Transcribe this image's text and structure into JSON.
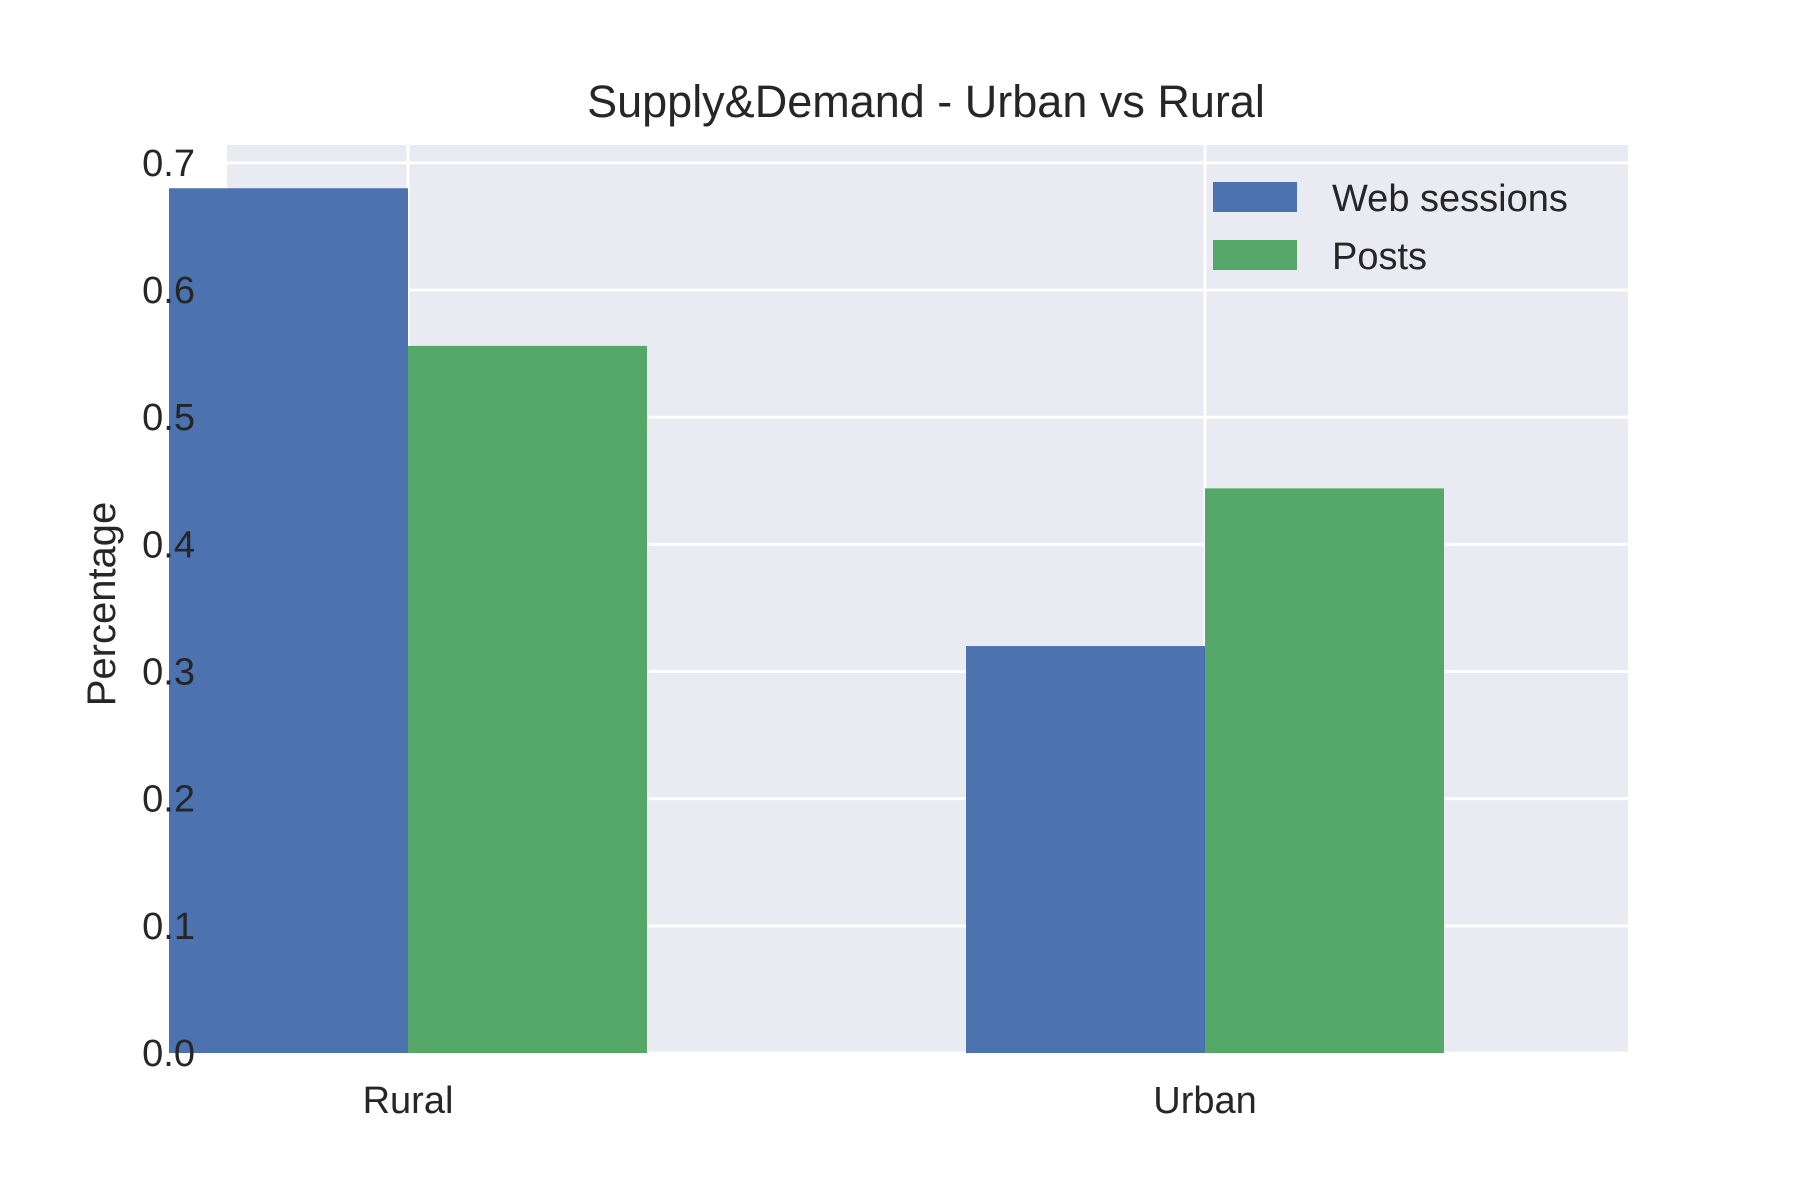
{
  "chart_data": {
    "type": "bar",
    "title": "Supply&Demand - Urban vs Rural",
    "xlabel": "",
    "ylabel": "Percentage",
    "categories": [
      "Rural",
      "Urban"
    ],
    "series": [
      {
        "name": "Web sessions",
        "values": [
          0.68,
          0.32
        ],
        "color": "#4c72b0"
      },
      {
        "name": "Posts",
        "values": [
          0.556,
          0.444
        ],
        "color": "#55a868"
      }
    ],
    "ylim": [
      0,
      0.714
    ],
    "yticks": [
      "0.0",
      "0.1",
      "0.2",
      "0.3",
      "0.4",
      "0.5",
      "0.6",
      "0.7"
    ],
    "grid": true,
    "legend_position": "top-right",
    "plot_background": "#eaeaf2",
    "grid_color": "#ffffff"
  }
}
